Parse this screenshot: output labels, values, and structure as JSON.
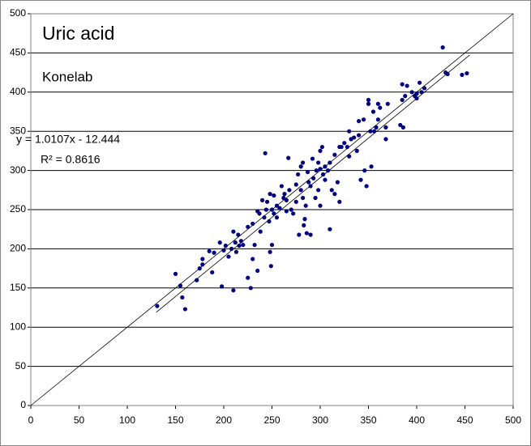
{
  "chart_data": {
    "type": "scatter",
    "title": "Uric acid",
    "subtitle": "Konelab",
    "trendline": {
      "label": "y = 1.0107x - 12.444",
      "r2_label": "R² = 0.8616",
      "slope": 1.0107,
      "intercept": -12.444,
      "x_range": [
        130,
        455
      ]
    },
    "identity_line": true,
    "xlim": [
      0,
      500
    ],
    "ylim": [
      0,
      500
    ],
    "xticks": [
      0,
      50,
      100,
      150,
      200,
      250,
      300,
      350,
      400,
      450,
      500
    ],
    "yticks": [
      0,
      50,
      100,
      150,
      200,
      250,
      300,
      350,
      400,
      450,
      500
    ],
    "grid": true,
    "color": "#000080",
    "x": [
      131,
      150,
      155,
      157,
      160,
      172,
      175,
      178,
      178,
      185,
      188,
      190,
      196,
      198,
      200,
      202,
      205,
      208,
      210,
      210,
      212,
      213,
      215,
      216,
      218,
      220,
      225,
      225,
      228,
      230,
      230,
      232,
      235,
      235,
      237,
      238,
      240,
      242,
      243,
      244,
      245,
      247,
      248,
      248,
      249,
      250,
      250,
      252,
      252,
      255,
      255,
      258,
      260,
      262,
      263,
      265,
      265,
      267,
      268,
      270,
      272,
      275,
      275,
      277,
      278,
      280,
      280,
      282,
      282,
      283,
      284,
      285,
      286,
      287,
      288,
      290,
      290,
      292,
      293,
      295,
      296,
      298,
      298,
      300,
      300,
      300,
      302,
      303,
      305,
      305,
      308,
      310,
      310,
      312,
      315,
      315,
      318,
      320,
      320,
      322,
      325,
      328,
      330,
      330,
      332,
      335,
      338,
      340,
      340,
      342,
      345,
      346,
      348,
      350,
      350,
      352,
      353,
      355,
      356,
      358,
      360,
      360,
      362,
      368,
      368,
      370,
      383,
      385,
      385,
      386,
      388,
      390,
      395,
      398,
      400,
      400,
      403,
      405,
      408,
      427,
      430,
      432,
      447,
      452
    ],
    "values": [
      127,
      168,
      153,
      138,
      123,
      160,
      175,
      187,
      180,
      197,
      170,
      195,
      208,
      152,
      198,
      204,
      190,
      200,
      147,
      222,
      208,
      196,
      218,
      204,
      210,
      205,
      163,
      228,
      150,
      187,
      232,
      205,
      248,
      172,
      245,
      222,
      262,
      240,
      322,
      250,
      260,
      235,
      270,
      196,
      178,
      250,
      205,
      268,
      245,
      255,
      240,
      252,
      280,
      265,
      270,
      248,
      262,
      316,
      275,
      250,
      245,
      282,
      260,
      295,
      218,
      305,
      275,
      310,
      265,
      230,
      238,
      255,
      220,
      298,
      285,
      280,
      218,
      315,
      290,
      265,
      300,
      310,
      275,
      255,
      302,
      325,
      330,
      295,
      305,
      288,
      300,
      310,
      225,
      275,
      320,
      270,
      285,
      330,
      260,
      330,
      335,
      330,
      350,
      318,
      340,
      342,
      325,
      363,
      345,
      288,
      365,
      300,
      280,
      390,
      385,
      350,
      305,
      375,
      350,
      355,
      385,
      365,
      380,
      340,
      355,
      385,
      358,
      390,
      410,
      355,
      395,
      408,
      400,
      395,
      392,
      398,
      412,
      400,
      405,
      457,
      425,
      423,
      422,
      424
    ]
  }
}
